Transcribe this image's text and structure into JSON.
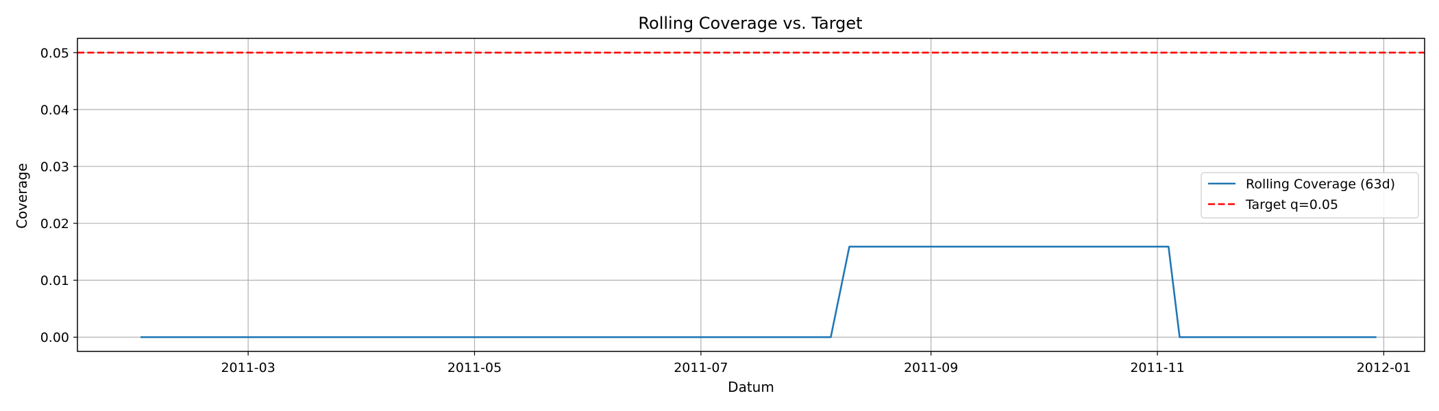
{
  "chart_data": {
    "type": "line",
    "title": "Rolling Coverage vs. Target",
    "xlabel": "Datum",
    "ylabel": "Coverage",
    "x_type": "date",
    "xlim": [
      "2011-01-14",
      "2012-01-12"
    ],
    "ylim": [
      -0.0025,
      0.0525
    ],
    "x_ticks": [
      "2011-03-01",
      "2011-05-01",
      "2011-07-01",
      "2011-09-01",
      "2011-11-01",
      "2012-01-01"
    ],
    "x_tick_labels": [
      "2011-03",
      "2011-05",
      "2011-07",
      "2011-09",
      "2011-11",
      "2012-01"
    ],
    "y_ticks": [
      0.0,
      0.01,
      0.02,
      0.03,
      0.04,
      0.05
    ],
    "y_tick_labels": [
      "0.00",
      "0.01",
      "0.02",
      "0.03",
      "0.04",
      "0.05"
    ],
    "grid": true,
    "legend_position": "center-right",
    "series": [
      {
        "name": "Rolling Coverage (63d)",
        "color": "#1f77b4",
        "style": "solid",
        "x": [
          "2011-01-31",
          "2011-08-05",
          "2011-08-10",
          "2011-11-04",
          "2011-11-07",
          "2011-12-30"
        ],
        "y": [
          0.0,
          0.0,
          0.0159,
          0.0159,
          0.0,
          0.0
        ]
      }
    ],
    "reference_lines": [
      {
        "name": "Target q=0.05",
        "axis": "y",
        "value": 0.05,
        "color": "#ff0000",
        "style": "dashed"
      }
    ]
  }
}
